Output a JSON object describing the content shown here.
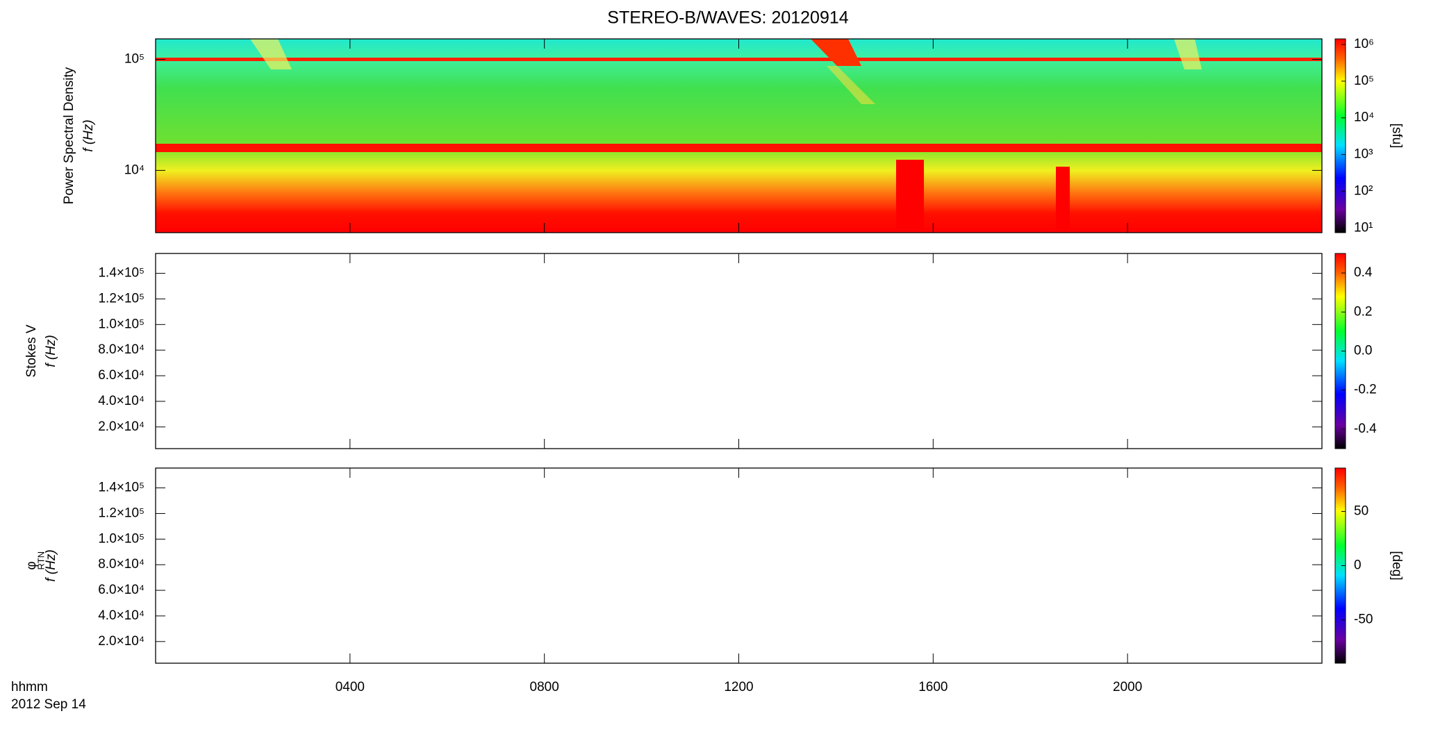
{
  "title": "STEREO-B/WAVES: 20120914",
  "x_units": "hhmm",
  "date": "2012 Sep 14",
  "chart_data": [
    {
      "type": "heatmap",
      "ylabel": "Power Spectral Density",
      "ylabel2": "f (Hz)",
      "ylim": [
        2750,
        153000
      ],
      "ylog": true,
      "yticks": [
        {
          "value": 10000,
          "label": "10⁴"
        },
        {
          "value": 100000,
          "label": "10⁵"
        }
      ],
      "colorbar": {
        "lim": [
          7.45,
          1420000
        ],
        "log": true,
        "label": "[sfu]",
        "ticks": [
          {
            "value": 10,
            "label": "10¹"
          },
          {
            "value": 100,
            "label": "10²"
          },
          {
            "value": 1000,
            "label": "10³"
          },
          {
            "value": 10000,
            "label": "10⁴"
          },
          {
            "value": 100000,
            "label": "10⁵"
          },
          {
            "value": 1000000,
            "label": "10⁶"
          }
        ]
      }
    },
    {
      "type": "heatmap",
      "ylabel": "Stokes V",
      "ylabel2": "f (Hz)",
      "ylim": [
        3070,
        155500
      ],
      "ylog": false,
      "yticks": [
        {
          "value": 20000,
          "label": "2.0×10⁴"
        },
        {
          "value": 40000,
          "label": "4.0×10⁴"
        },
        {
          "value": 60000,
          "label": "6.0×10⁴"
        },
        {
          "value": 80000,
          "label": "8.0×10⁴"
        },
        {
          "value": 100000,
          "label": "1.0×10⁵"
        },
        {
          "value": 120000,
          "label": "1.2×10⁵"
        },
        {
          "value": 140000,
          "label": "1.4×10⁵"
        }
      ],
      "colorbar": {
        "lim": [
          -0.5,
          0.5
        ],
        "log": false,
        "ticks": [
          -0.4,
          -0.2,
          {
            "value": 0,
            "label": "0.0"
          },
          0.2,
          0.4
        ]
      }
    },
    {
      "type": "heatmap",
      "ylabel": "φ",
      "ylabel_subscript": "RTN",
      "ylabel2": "f (Hz)",
      "ylim": [
        3070,
        155500
      ],
      "ylog": false,
      "yticks": [
        {
          "value": 20000,
          "label": "2.0×10⁴"
        },
        {
          "value": 40000,
          "label": "4.0×10⁴"
        },
        {
          "value": 60000,
          "label": "6.0×10⁴"
        },
        {
          "value": 80000,
          "label": "8.0×10⁴"
        },
        {
          "value": 100000,
          "label": "1.0×10⁵"
        },
        {
          "value": 120000,
          "label": "1.2×10⁵"
        },
        {
          "value": 140000,
          "label": "1.4×10⁵"
        }
      ],
      "xlim": [
        0,
        24
      ],
      "xticks": [
        {
          "value": 4,
          "label": "0400"
        },
        {
          "value": 8,
          "label": "0800"
        },
        {
          "value": 12,
          "label": "1200"
        },
        {
          "value": 16,
          "label": "1600"
        },
        {
          "value": 20,
          "label": "2000"
        }
      ],
      "colorbar": {
        "lim": [
          -90,
          90
        ],
        "log": false,
        "label": "[deg]",
        "ticks": [
          -50,
          0,
          50
        ]
      }
    }
  ]
}
